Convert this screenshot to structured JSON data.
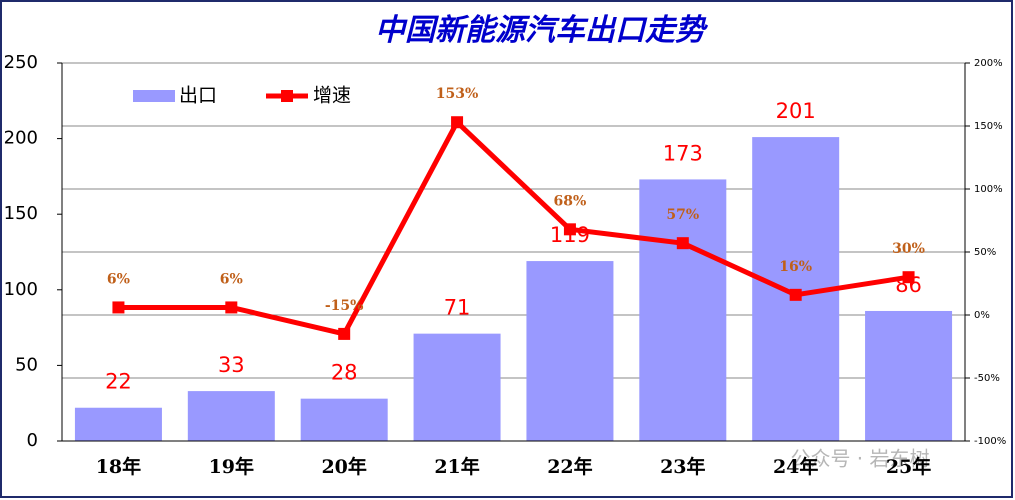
{
  "chart_data": {
    "type": "bar",
    "title": "中国新能源汽车出口走势",
    "categories": [
      "18年",
      "19年",
      "20年",
      "21年",
      "22年",
      "23年",
      "24年",
      "25年"
    ],
    "series": [
      {
        "name": "出口",
        "type": "bar",
        "color": "#9999ff",
        "values": [
          22,
          33,
          28,
          71,
          119,
          173,
          201,
          86
        ]
      },
      {
        "name": "增速",
        "type": "line",
        "axis": "y2",
        "color": "#ff0000",
        "values": [
          6,
          6,
          -15,
          153,
          68,
          57,
          16,
          30
        ],
        "value_labels": [
          "6%",
          "6%",
          "-15%",
          "153%",
          "68%",
          "57%",
          "16%",
          "30%"
        ]
      }
    ],
    "ylim": [
      0,
      250
    ],
    "yticks": [
      0,
      50,
      100,
      150,
      200,
      250
    ],
    "y2lim": [
      -100,
      200
    ],
    "y2ticks": [
      {
        "value": -100,
        "label": "-100%"
      },
      {
        "value": -50,
        "label": "-50%"
      },
      {
        "value": 0,
        "label": "0%"
      },
      {
        "value": 50,
        "label": "50%"
      },
      {
        "value": 100,
        "label": "100%"
      },
      {
        "value": 150,
        "label": "150%"
      },
      {
        "value": 200,
        "label": "200%"
      }
    ],
    "grid": true,
    "watermark": "公众号 · 岩东树"
  }
}
